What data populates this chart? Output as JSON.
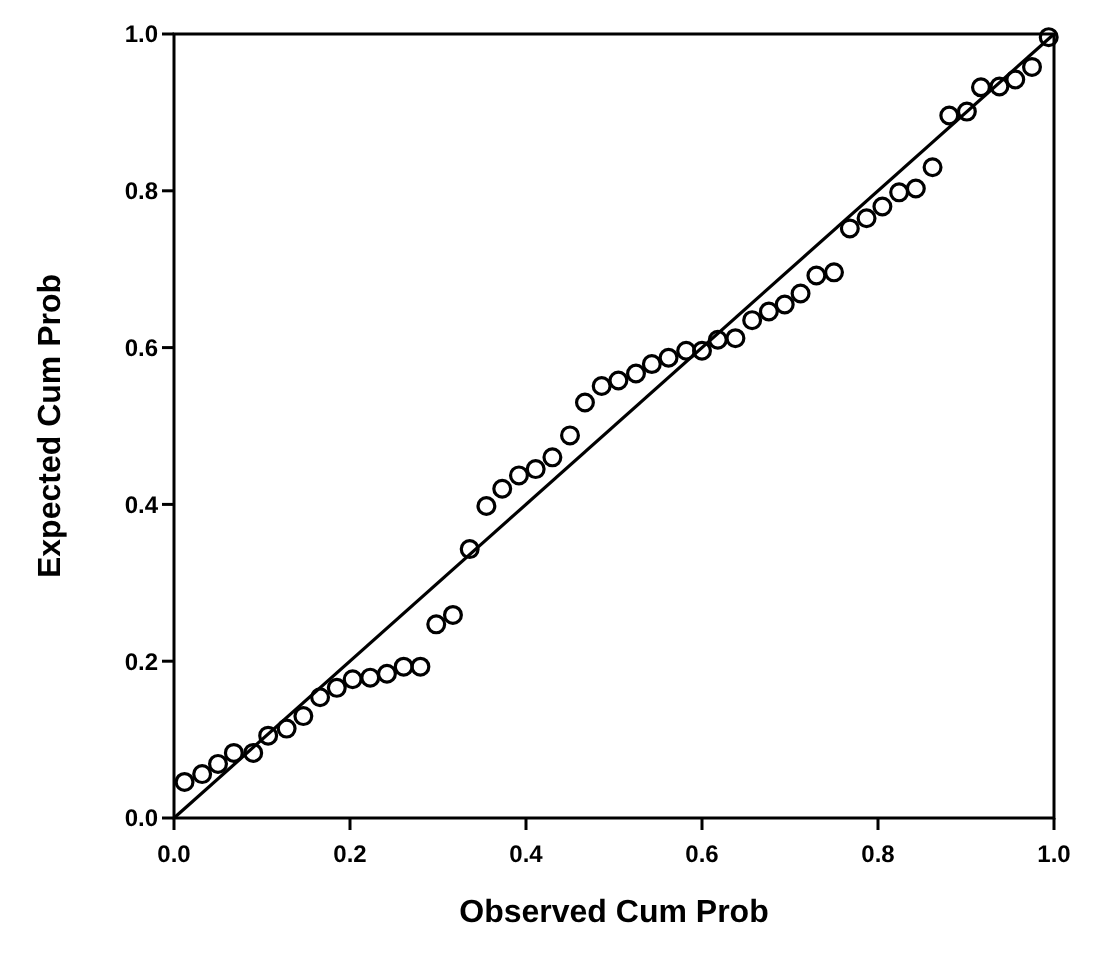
{
  "chart_data": {
    "type": "scatter",
    "xlabel": "Observed Cum Prob",
    "ylabel": "Expected Cum Prob",
    "xlim": [
      0,
      1
    ],
    "ylim": [
      0,
      1
    ],
    "xticks": [
      {
        "value": 0,
        "label": "0.0"
      },
      {
        "value": 0.2,
        "label": "0.2"
      },
      {
        "value": 0.4,
        "label": "0.4"
      },
      {
        "value": 0.6,
        "label": "0.6"
      },
      {
        "value": 0.8,
        "label": "0.8"
      },
      {
        "value": 1,
        "label": "1.0"
      }
    ],
    "yticks": [
      {
        "value": 0,
        "label": "0.0"
      },
      {
        "value": 0.2,
        "label": "0.2"
      },
      {
        "value": 0.4,
        "label": "0.4"
      },
      {
        "value": 0.6,
        "label": "0.6"
      },
      {
        "value": 0.8,
        "label": "0.8"
      },
      {
        "value": 1,
        "label": "1.0"
      }
    ],
    "grid": false,
    "series": [
      {
        "marker": "circle",
        "color": "#000000",
        "x": [
          0.012,
          0.032,
          0.05,
          0.068,
          0.09,
          0.107,
          0.128,
          0.147,
          0.166,
          0.185,
          0.203,
          0.223,
          0.242,
          0.261,
          0.28,
          0.298,
          0.317,
          0.336,
          0.355,
          0.373,
          0.392,
          0.411,
          0.43,
          0.45,
          0.467,
          0.486,
          0.505,
          0.525,
          0.543,
          0.562,
          0.582,
          0.6,
          0.618,
          0.638,
          0.657,
          0.676,
          0.694,
          0.712,
          0.73,
          0.75,
          0.768,
          0.787,
          0.805,
          0.824,
          0.843,
          0.862,
          0.881,
          0.901,
          0.917,
          0.938,
          0.956,
          0.975,
          0.994
        ],
        "values": [
          0.046,
          0.056,
          0.069,
          0.083,
          0.083,
          0.105,
          0.114,
          0.13,
          0.154,
          0.166,
          0.177,
          0.179,
          0.184,
          0.193,
          0.193,
          0.247,
          0.259,
          0.343,
          0.398,
          0.42,
          0.437,
          0.445,
          0.46,
          0.488,
          0.53,
          0.551,
          0.558,
          0.567,
          0.579,
          0.587,
          0.596,
          0.596,
          0.61,
          0.612,
          0.635,
          0.646,
          0.655,
          0.669,
          0.692,
          0.696,
          0.752,
          0.765,
          0.78,
          0.798,
          0.803,
          0.83,
          0.896,
          0.901,
          0.932,
          0.933,
          0.942,
          0.958,
          0.996
        ]
      },
      {
        "type": "line",
        "marker": "none",
        "line_style": "solid",
        "color": "#000000",
        "x": [
          0,
          1
        ],
        "values": [
          0,
          1
        ]
      }
    ]
  }
}
